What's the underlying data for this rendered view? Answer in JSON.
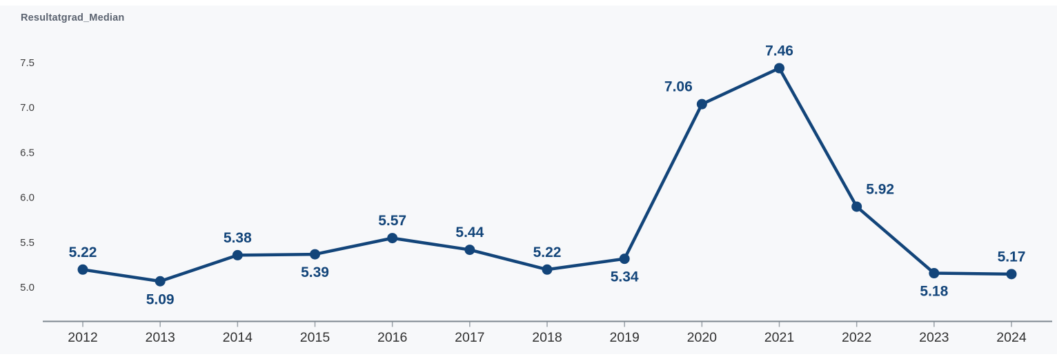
{
  "window": {
    "background": "#ffffff",
    "surface_background": "#f7f8fa"
  },
  "header": {
    "title": "Resultatgrad_Median"
  },
  "chart_data": {
    "type": "line",
    "title": "Resultatgrad_Median",
    "categories": [
      "2012",
      "2013",
      "2014",
      "2015",
      "2016",
      "2017",
      "2018",
      "2019",
      "2020",
      "2021",
      "2022",
      "2023",
      "2024"
    ],
    "series": [
      {
        "name": "Resultatgrad_Median",
        "values": [
          5.22,
          5.09,
          5.38,
          5.39,
          5.57,
          5.44,
          5.22,
          5.34,
          7.06,
          7.46,
          5.92,
          5.18,
          5.17
        ]
      }
    ],
    "point_labels": [
      "5.22",
      "5.09",
      "5.38",
      "5.39",
      "5.57",
      "5.44",
      "5.22",
      "5.34",
      "7.06",
      "7.46",
      "5.92",
      "5.18",
      "5.17"
    ],
    "point_label_positions": [
      "above",
      "below",
      "above",
      "below",
      "above",
      "above",
      "above",
      "below",
      "above",
      "above",
      "above",
      "below",
      "above"
    ],
    "point_label_dx": [
      0,
      0,
      0,
      0,
      0,
      0,
      0,
      0,
      -34,
      0,
      34,
      0,
      0
    ],
    "ytick_labels": [
      "5.0",
      "5.5",
      "6.0",
      "6.5",
      "7.0",
      "7.5"
    ],
    "ytick_values": [
      5.0,
      5.5,
      6.0,
      6.5,
      7.0,
      7.5
    ],
    "ylim": [
      4.64,
      8.16
    ],
    "xlabel": "",
    "ylabel": "",
    "grid": false,
    "legend": "none",
    "colors": {
      "line": "#13457A",
      "point": "#13457A",
      "value_label": "#13457A",
      "axis": "#7D868F",
      "tick": "#98A0A7",
      "xtick_label": "#303030",
      "ytick_label": "#3D3D3D",
      "title": "#5B6370"
    }
  }
}
